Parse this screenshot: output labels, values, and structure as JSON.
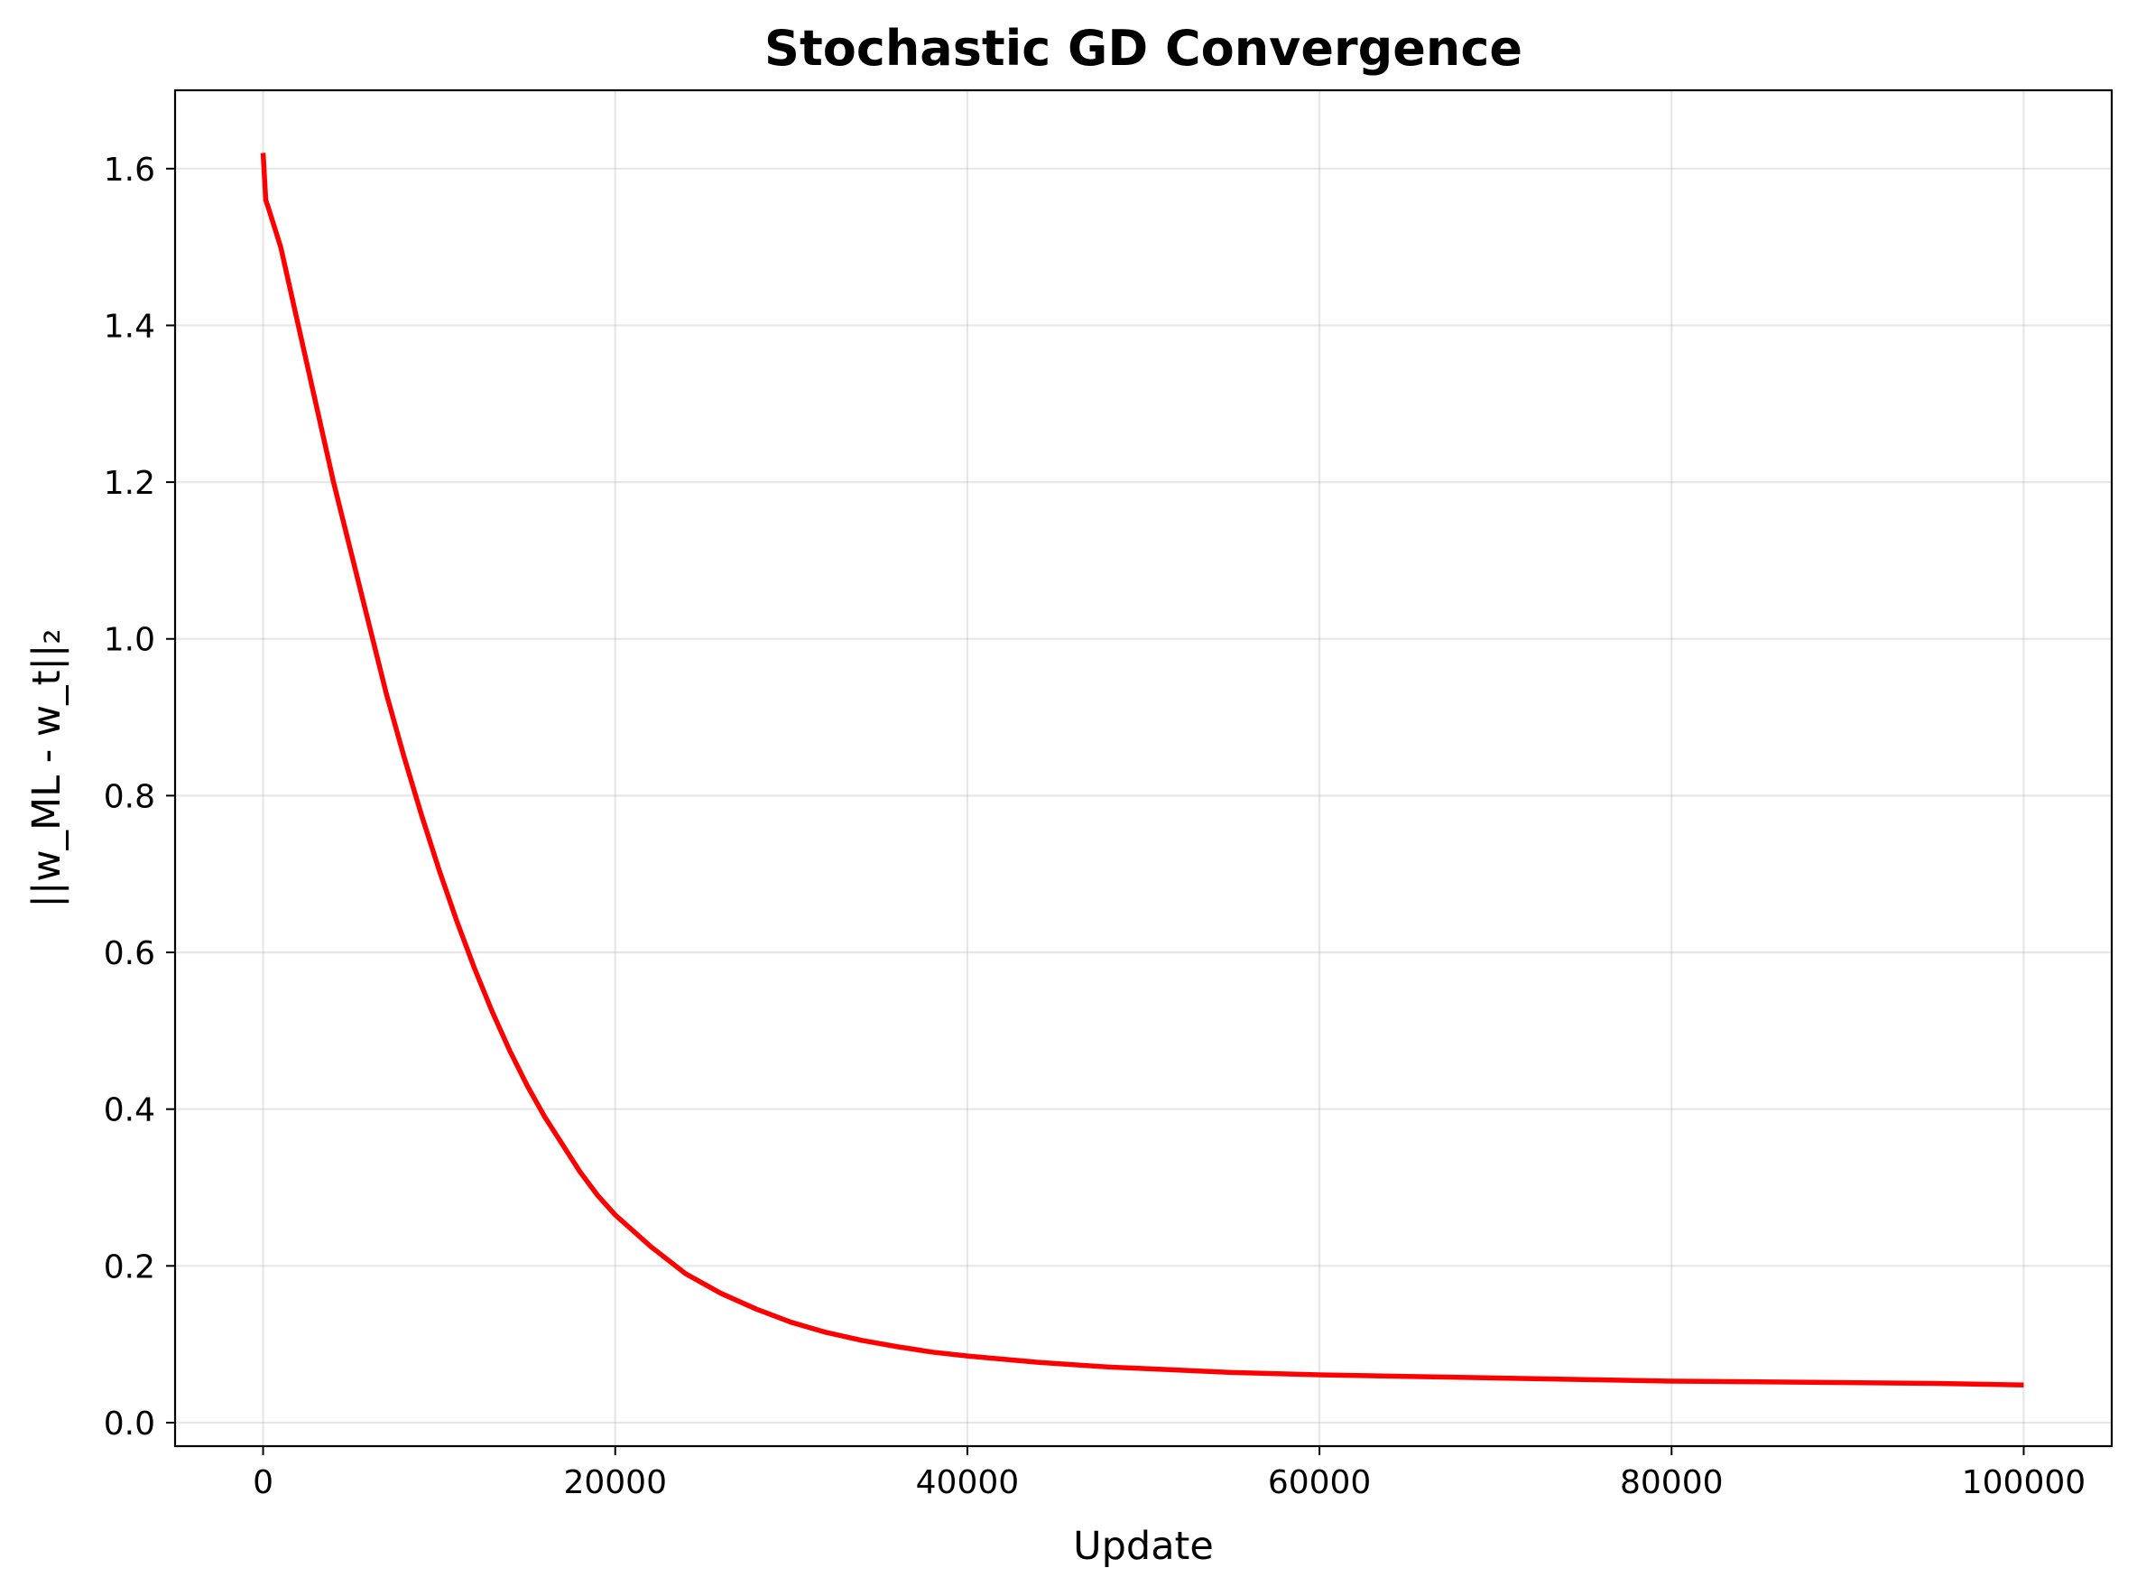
{
  "chart_data": {
    "type": "line",
    "title": "Stochastic GD Convergence",
    "xlabel": "Update",
    "ylabel": "||w_ML - w_t||₂",
    "xlim": [
      -5000,
      105000
    ],
    "ylim": [
      -0.03,
      1.7
    ],
    "xticks": [
      0,
      20000,
      40000,
      60000,
      80000,
      100000
    ],
    "xtick_labels": [
      "0",
      "20000",
      "40000",
      "60000",
      "80000",
      "100000"
    ],
    "yticks": [
      0.0,
      0.2,
      0.4,
      0.6,
      0.8,
      1.0,
      1.2,
      1.4,
      1.6
    ],
    "ytick_labels": [
      "0.0",
      "0.2",
      "0.4",
      "0.6",
      "0.8",
      "1.0",
      "1.2",
      "1.4",
      "1.6"
    ],
    "grid": true,
    "series": [
      {
        "color": "#ff0000",
        "x": [
          0,
          50,
          150,
          300,
          1000,
          2000,
          3000,
          4000,
          5000,
          6000,
          7000,
          8000,
          9000,
          10000,
          11000,
          12000,
          13000,
          14000,
          15000,
          16000,
          17000,
          18000,
          19000,
          20000,
          22000,
          24000,
          26000,
          28000,
          30000,
          32000,
          34000,
          36000,
          38000,
          40000,
          42000,
          44000,
          46000,
          48000,
          50000,
          55000,
          60000,
          65000,
          70000,
          75000,
          80000,
          85000,
          90000,
          95000,
          100000
        ],
        "y": [
          1.62,
          1.6,
          1.56,
          1.55,
          1.5,
          1.4,
          1.3,
          1.2,
          1.11,
          1.02,
          0.93,
          0.85,
          0.775,
          0.705,
          0.64,
          0.58,
          0.525,
          0.475,
          0.43,
          0.39,
          0.355,
          0.32,
          0.29,
          0.265,
          0.225,
          0.19,
          0.165,
          0.145,
          0.128,
          0.115,
          0.105,
          0.097,
          0.09,
          0.085,
          0.081,
          0.077,
          0.074,
          0.071,
          0.069,
          0.064,
          0.061,
          0.059,
          0.057,
          0.055,
          0.053,
          0.052,
          0.051,
          0.05,
          0.048
        ]
      }
    ]
  }
}
